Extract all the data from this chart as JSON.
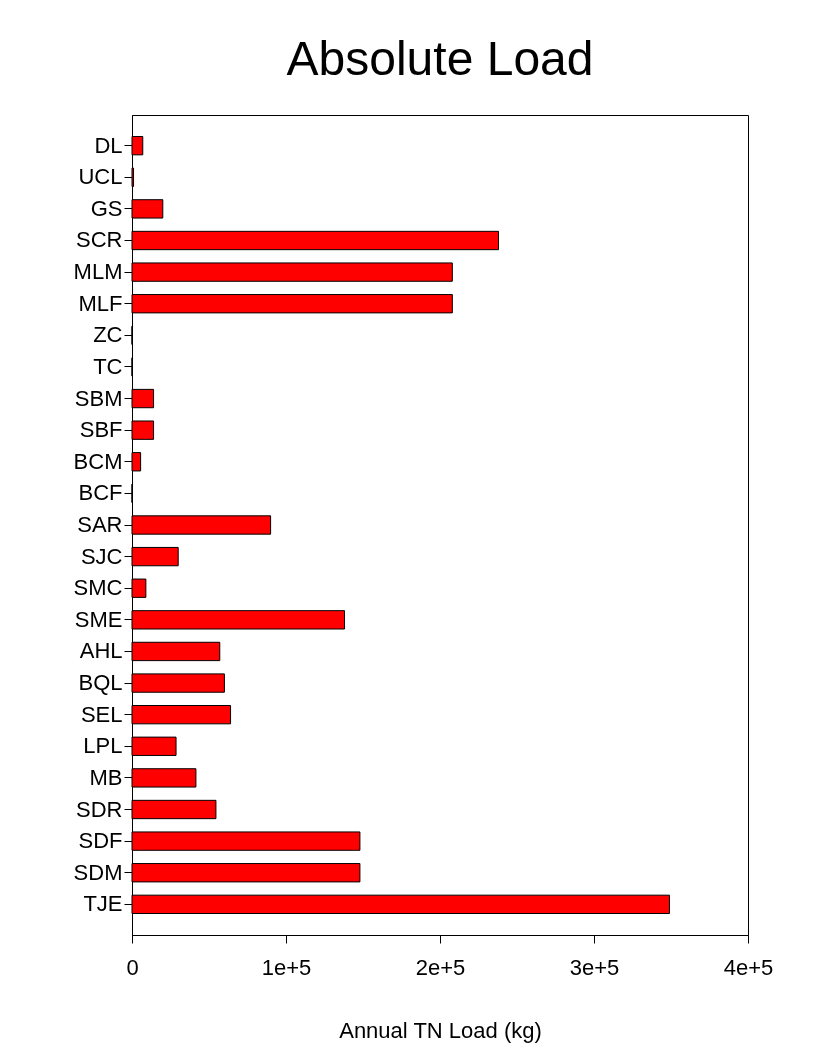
{
  "chart_data": {
    "type": "bar",
    "orientation": "horizontal",
    "title": "Absolute Load",
    "xlabel": "Annual TN Load (kg)",
    "categories": [
      "DL",
      "UCL",
      "GS",
      "SCR",
      "MLM",
      "MLF",
      "ZC",
      "TC",
      "SBM",
      "SBF",
      "BCM",
      "BCF",
      "SAR",
      "SJC",
      "SMC",
      "SME",
      "AHL",
      "BQL",
      "SEL",
      "LPL",
      "MB",
      "SDR",
      "SDF",
      "SDM",
      "TJE"
    ],
    "values": [
      7000,
      1000,
      20000,
      238000,
      208000,
      208000,
      0,
      0,
      14000,
      14000,
      5600,
      0,
      90000,
      30000,
      9000,
      138000,
      57000,
      60000,
      64000,
      28600,
      41500,
      54500,
      148000,
      148000,
      349000
    ],
    "color": "#ff0000",
    "xlim": [
      0,
      400000
    ],
    "xticks": [
      0,
      {
        "value": 100000,
        "label": "1e+5"
      },
      {
        "value": 200000,
        "label": "2e+5"
      },
      {
        "value": 300000,
        "label": "3e+5"
      },
      {
        "value": 400000,
        "label": "4e+5"
      }
    ],
    "grid": false
  }
}
